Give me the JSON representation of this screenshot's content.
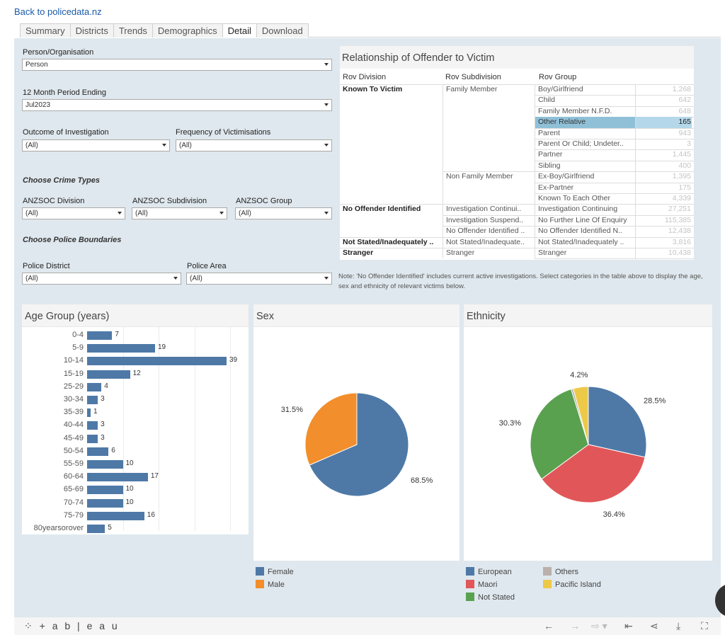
{
  "back_link": "Back to policedata.nz",
  "tabs": [
    "Summary",
    "Districts",
    "Trends",
    "Demographics",
    "Detail",
    "Download"
  ],
  "active_tab": "Detail",
  "filters": {
    "person_org_label": "Person/Organisation",
    "person_org_value": "Person",
    "period_label": "12 Month Period Ending",
    "period_value": "Jul2023",
    "outcome_label": "Outcome of Investigation",
    "outcome_value": "(All)",
    "frequency_label": "Frequency of Victimisations",
    "frequency_value": "(All)",
    "crime_types_heading": "Choose Crime Types",
    "anz_division_label": "ANZSOC Division",
    "anz_division_value": "(All)",
    "anz_subdivision_label": "ANZSOC Subdivision",
    "anz_subdivision_value": "(All)",
    "anz_group_label": "ANZSOC Group",
    "anz_group_value": "(All)",
    "boundaries_heading": "Choose Police Boundaries",
    "district_label": "Police District",
    "district_value": "(All)",
    "area_label": "Police Area",
    "area_value": "(All)"
  },
  "relationship": {
    "title": "Relationship of Offender to Victim",
    "headers": [
      "Rov Division",
      "Rov Subdivision",
      "Rov Group"
    ],
    "divisions": [
      "Known To Victim",
      "No Offender Identified",
      "Not Stated/Inadequately ..",
      "Stranger"
    ],
    "subdivisions": [
      "Family Member",
      "Non Family Member",
      "Investigation Continui..",
      "Investigation Suspend..",
      "No Offender Identified ..",
      "Not Stated/Inadequate..",
      "Stranger"
    ],
    "groups": [
      "Boy/Girlfriend",
      "Child",
      "Family Member N.F.D.",
      "Other Relative",
      "Parent",
      "Parent Or Child; Undeter..",
      "Partner",
      "Sibling",
      "Ex-Boy/Girlfriend",
      "Ex-Partner",
      "Known To Each Other",
      "Investigation Continuing",
      "No Further Line Of Enquiry",
      "No Offender Identified N..",
      "Not Stated/Inadequately ..",
      "Stranger"
    ],
    "values": [
      "1,268",
      "642",
      "648",
      "165",
      "943",
      "3",
      "1,445",
      "400",
      "1,395",
      "175",
      "4,339",
      "27,251",
      "115,385",
      "12,438",
      "3,816",
      "10,438"
    ],
    "selected_group": "Other Relative"
  },
  "note": "Note: 'No Offender Identified' includes current active investigations. Select categories in the  table above to display the age, sex and ethnicity of relevant victims below.",
  "age_panel": {
    "title": "Age Group (years)",
    "labels": [
      "0-4",
      "5-9",
      "10-14",
      "15-19",
      "25-29",
      "30-34",
      "35-39",
      "40-44",
      "45-49",
      "50-54",
      "55-59",
      "60-64",
      "65-69",
      "70-74",
      "75-79",
      "80yearsorover"
    ],
    "values": [
      7,
      19,
      39,
      12,
      4,
      3,
      1,
      3,
      3,
      6,
      10,
      17,
      10,
      10,
      16,
      5
    ]
  },
  "sex_panel": {
    "title": "Sex",
    "slices": [
      {
        "name": "Female",
        "value": 68.5,
        "label": "68.5%",
        "color": "#4e79a7"
      },
      {
        "name": "Male",
        "value": 31.5,
        "label": "31.5%",
        "color": "#f28e2b"
      }
    ],
    "legend": [
      "Female",
      "Male"
    ]
  },
  "ethnicity_panel": {
    "title": "Ethnicity",
    "slices": [
      {
        "name": "European",
        "value": 28.5,
        "label": "28.5%",
        "color": "#4e79a7"
      },
      {
        "name": "Maori",
        "value": 36.4,
        "label": "36.4%",
        "color": "#e15759"
      },
      {
        "name": "Not Stated",
        "value": 30.3,
        "label": "30.3%",
        "color": "#59a14f"
      },
      {
        "name": "Others",
        "value": 0.6,
        "label": "",
        "color": "#bab0ac"
      },
      {
        "name": "Pacific Island",
        "value": 4.2,
        "label": "4.2%",
        "color": "#edc948"
      }
    ],
    "legend": [
      "European",
      "Maori",
      "Not Stated",
      "Others",
      "Pacific Island"
    ]
  },
  "chart_data": [
    {
      "type": "bar",
      "title": "Age Group (years)",
      "categories": [
        "0-4",
        "5-9",
        "10-14",
        "15-19",
        "25-29",
        "30-34",
        "35-39",
        "40-44",
        "45-49",
        "50-54",
        "55-59",
        "60-64",
        "65-69",
        "70-74",
        "75-79",
        "80yearsorover"
      ],
      "values": [
        7,
        19,
        39,
        12,
        4,
        3,
        1,
        3,
        3,
        6,
        10,
        17,
        10,
        10,
        16,
        5
      ],
      "orientation": "horizontal"
    },
    {
      "type": "pie",
      "title": "Sex",
      "categories": [
        "Female",
        "Male"
      ],
      "values": [
        68.5,
        31.5
      ]
    },
    {
      "type": "pie",
      "title": "Ethnicity",
      "categories": [
        "European",
        "Maori",
        "Not Stated",
        "Others",
        "Pacific Island"
      ],
      "values": [
        28.5,
        36.4,
        30.3,
        0.6,
        4.2
      ]
    }
  ],
  "footer": {
    "logo": "+ a b | e a u"
  }
}
